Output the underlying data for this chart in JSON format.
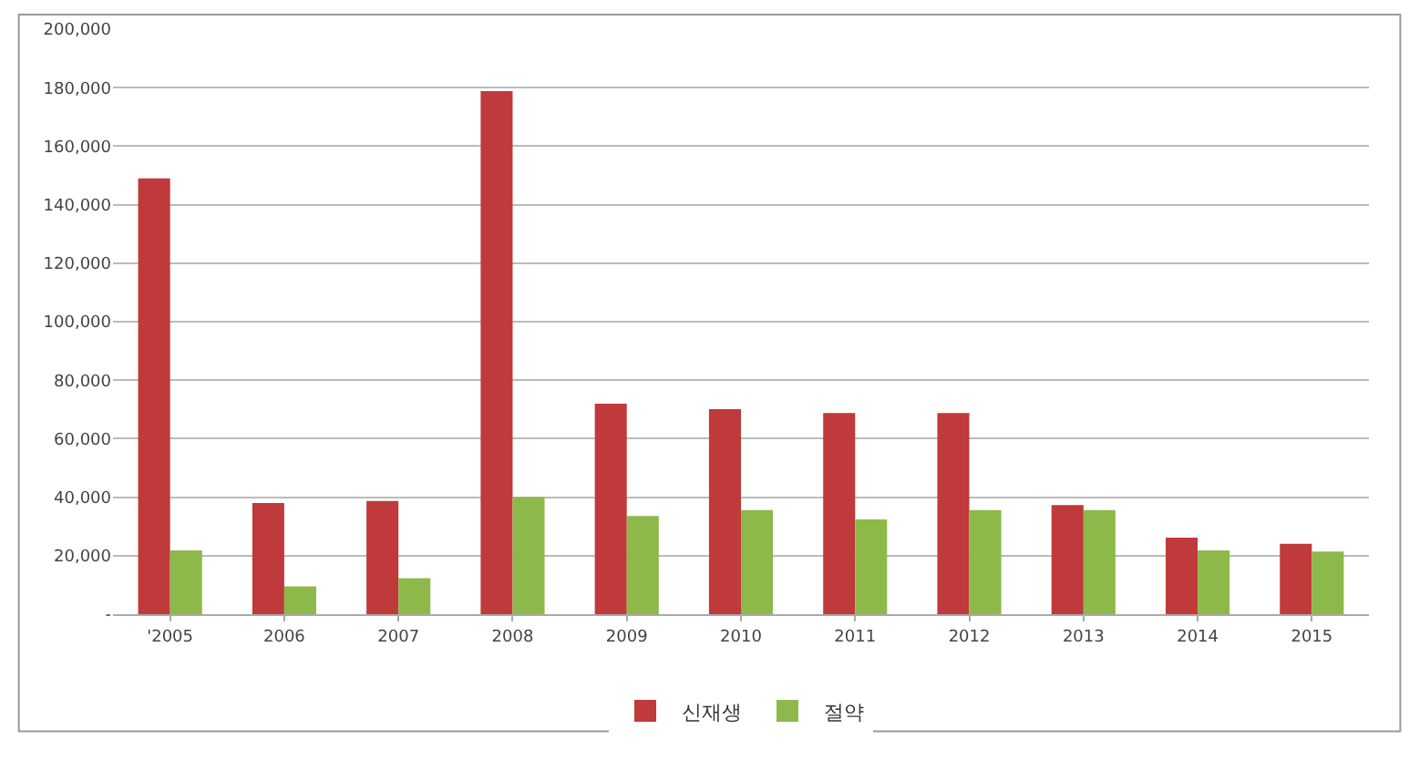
{
  "chart_data": {
    "type": "bar",
    "categories": [
      "'2005",
      "2006",
      "2007",
      "2008",
      "2009",
      "2010",
      "2011",
      "2012",
      "2013",
      "2014",
      "2015"
    ],
    "series": [
      {
        "name": "신재생",
        "color": "#c0393b",
        "values": [
          149000,
          38000,
          38700,
          178800,
          72000,
          70100,
          68800,
          68800,
          37300,
          26200,
          24100
        ]
      },
      {
        "name": "절약",
        "color": "#8db94a",
        "values": [
          21800,
          9500,
          12300,
          40000,
          33600,
          35600,
          32400,
          35600,
          35600,
          21800,
          21400
        ]
      }
    ],
    "ylim": [
      0,
      200000
    ],
    "yticks": [
      {
        "value": 0,
        "label": "-"
      },
      {
        "value": 20000,
        "label": "20,000"
      },
      {
        "value": 40000,
        "label": "40,000"
      },
      {
        "value": 60000,
        "label": "60,000"
      },
      {
        "value": 80000,
        "label": "80,000"
      },
      {
        "value": 100000,
        "label": "100,000"
      },
      {
        "value": 120000,
        "label": "120,000"
      },
      {
        "value": 140000,
        "label": "140,000"
      },
      {
        "value": 160000,
        "label": "160,000"
      },
      {
        "value": 180000,
        "label": "180,000"
      },
      {
        "value": 200000,
        "label": "200,000"
      }
    ],
    "grid": "y",
    "legend": "bottom"
  }
}
